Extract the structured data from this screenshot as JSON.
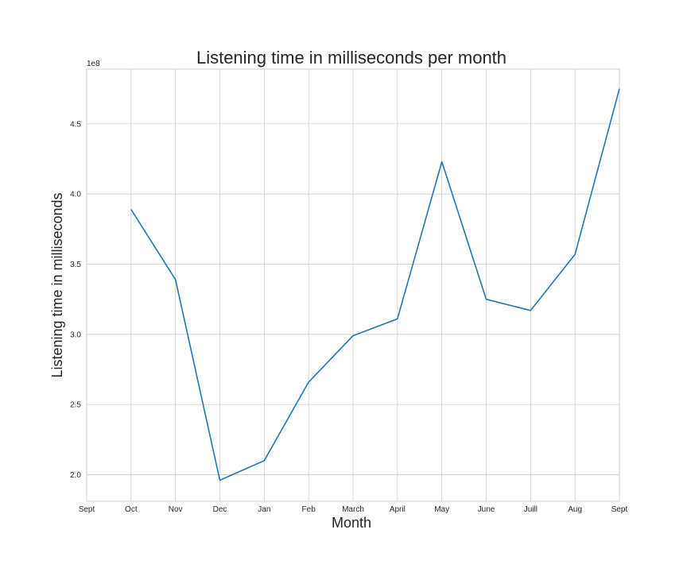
{
  "chart_data": {
    "type": "line",
    "title": "Listening time in milliseconds per month",
    "xlabel": "Month",
    "ylabel": "Listening time in milliseconds",
    "y_offset_label": "1e8",
    "categories": [
      "Sept",
      "Oct",
      "Nov",
      "Dec",
      "Jan",
      "Feb",
      "March",
      "April",
      "May",
      "June",
      "Juill",
      "Aug",
      "Sept"
    ],
    "series": [
      {
        "color": "#1f77b4",
        "points": [
          {
            "x": "Oct",
            "y": 389000000
          },
          {
            "x": "Nov",
            "y": 339000000
          },
          {
            "x": "Dec",
            "y": 196000000
          },
          {
            "x": "Jan",
            "y": 210000000
          },
          {
            "x": "Feb",
            "y": 266000000
          },
          {
            "x": "March",
            "y": 299000000
          },
          {
            "x": "April",
            "y": 311000000
          },
          {
            "x": "May",
            "y": 423000000
          },
          {
            "x": "June",
            "y": 325000000
          },
          {
            "x": "Juill",
            "y": 317000000
          },
          {
            "x": "Aug",
            "y": 357000000
          },
          {
            "x": "Sept",
            "y": 475000000
          }
        ]
      }
    ],
    "yticks": [
      2.0,
      2.5,
      3.0,
      3.5,
      4.0,
      4.5
    ],
    "ytick_labels": [
      "2.0",
      "2.5",
      "3.0",
      "3.5",
      "4.0",
      "4.5"
    ],
    "ylim": [
      181000000,
      489000000
    ],
    "grid": true,
    "legend": "none"
  }
}
